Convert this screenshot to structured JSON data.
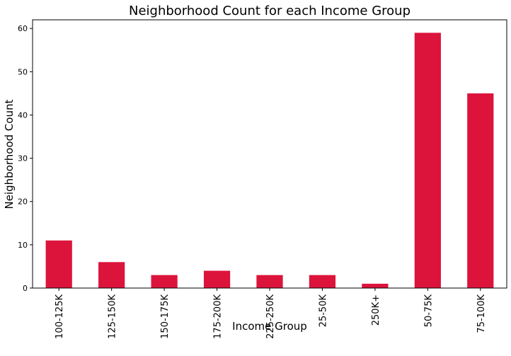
{
  "chart_data": {
    "type": "bar",
    "title": "Neighborhood Count for each Income Group",
    "xlabel": "Income Group",
    "ylabel": "Neighborhood Count",
    "categories": [
      "100-125K",
      "125-150K",
      "150-175K",
      "175-200K",
      "225-250K",
      "25-50K",
      "250K+",
      "50-75K",
      "75-100K"
    ],
    "values": [
      11,
      6,
      3,
      4,
      3,
      3,
      1,
      59,
      45
    ],
    "ylim": [
      0,
      62
    ],
    "yticks": [
      0,
      10,
      20,
      30,
      40,
      50,
      60
    ],
    "bar_color": "#dc143c",
    "grid": false,
    "legend": "none"
  }
}
